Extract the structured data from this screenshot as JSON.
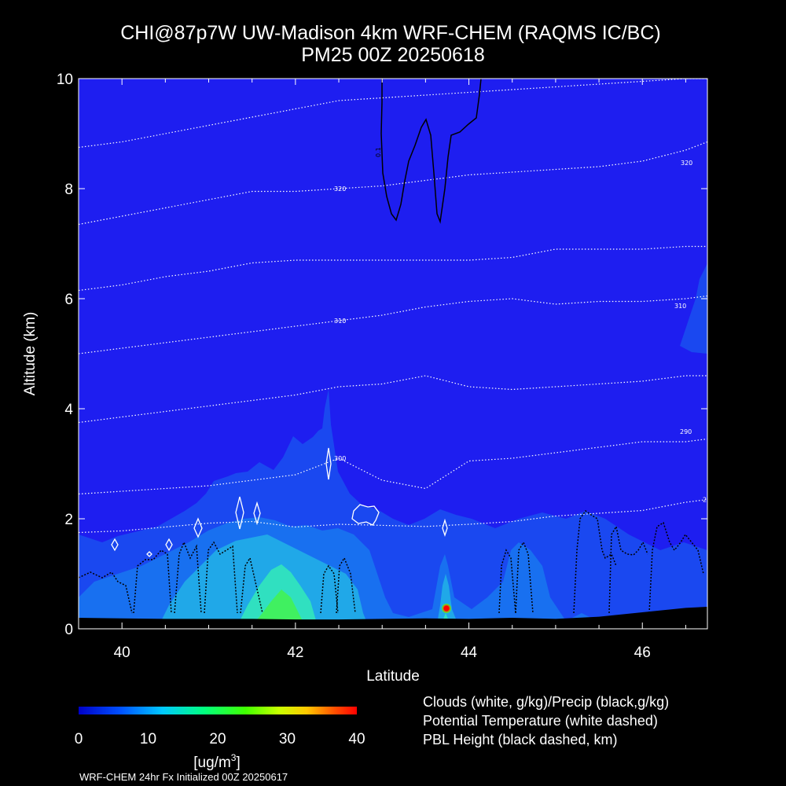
{
  "title": {
    "line1": "CHI@87p7W UW-Madison 4km WRF-CHEM (RAQMS IC/BC)",
    "line2": "PM25 00Z 20250618"
  },
  "chart_data": {
    "type": "heatmap",
    "xlabel": "Latitude",
    "ylabel": "Altitude (km)",
    "xlim": [
      39.5,
      46.75
    ],
    "ylim": [
      0,
      10
    ],
    "xticks": [
      40,
      42,
      44,
      46
    ],
    "yticks": [
      0,
      2,
      4,
      6,
      8,
      10
    ],
    "colorbar": {
      "ticks": [
        0,
        10,
        20,
        30,
        40
      ],
      "unit_prefix": "[ug/m",
      "unit_sup": "3",
      "unit_suffix": "]",
      "range": [
        0,
        40
      ]
    },
    "theta_contours": [
      {
        "label": "290",
        "x": [
          39.5,
          40.0,
          40.5,
          41.0,
          41.5,
          42.0,
          42.5,
          43.0,
          43.5,
          44.0,
          44.5,
          45.0,
          45.5,
          46.0,
          46.5,
          46.75
        ],
        "y": [
          1.75,
          1.78,
          1.85,
          1.92,
          1.95,
          1.85,
          1.9,
          1.88,
          1.86,
          1.9,
          1.95,
          2.05,
          2.1,
          2.15,
          2.3,
          2.35
        ]
      },
      {
        "label": "300",
        "x": [
          39.5,
          40.0,
          40.5,
          41.0,
          41.5,
          42.0,
          42.5,
          43.0,
          43.5,
          44.0,
          44.5,
          45.0,
          45.5,
          46.0,
          46.5,
          46.75
        ],
        "y": [
          2.45,
          2.5,
          2.55,
          2.6,
          2.7,
          2.8,
          3.1,
          2.7,
          2.55,
          3.05,
          3.1,
          3.2,
          3.3,
          3.4,
          3.4,
          3.45
        ]
      },
      {
        "label": "",
        "x": [
          39.5,
          40.0,
          40.5,
          41.0,
          41.5,
          42.0,
          42.5,
          43.0,
          43.5,
          44.0,
          44.5,
          45.0,
          45.5,
          46.0,
          46.5,
          46.75
        ],
        "y": [
          3.75,
          3.85,
          3.95,
          4.05,
          4.15,
          4.25,
          4.4,
          4.45,
          4.6,
          4.4,
          4.35,
          4.4,
          4.45,
          4.5,
          4.6,
          4.6
        ]
      },
      {
        "label": "310",
        "x": [
          39.5,
          40.0,
          40.5,
          41.0,
          41.5,
          42.0,
          42.5,
          43.0,
          43.5,
          44.0,
          44.5,
          45.0,
          45.5,
          46.0,
          46.5,
          46.75
        ],
        "y": [
          5.0,
          5.1,
          5.2,
          5.3,
          5.4,
          5.5,
          5.6,
          5.7,
          5.85,
          5.95,
          6.0,
          5.9,
          5.95,
          5.95,
          6.0,
          6.05
        ]
      },
      {
        "label": "",
        "x": [
          39.5,
          40.0,
          40.5,
          41.0,
          41.5,
          42.0,
          42.5,
          43.0,
          43.5,
          44.0,
          44.5,
          45.0,
          45.5,
          46.0,
          46.5,
          46.75
        ],
        "y": [
          6.15,
          6.25,
          6.4,
          6.5,
          6.65,
          6.7,
          6.7,
          6.7,
          6.7,
          6.7,
          6.75,
          6.9,
          6.9,
          6.9,
          6.95,
          6.95
        ]
      },
      {
        "label": "320",
        "x": [
          39.5,
          40.0,
          40.5,
          41.0,
          41.5,
          42.0,
          42.5,
          43.0,
          43.5,
          44.0,
          44.5,
          45.0,
          45.5,
          46.0,
          46.5,
          46.75
        ],
        "y": [
          7.35,
          7.5,
          7.65,
          7.8,
          7.95,
          7.95,
          8.0,
          8.05,
          8.15,
          8.25,
          8.3,
          8.35,
          8.4,
          8.5,
          8.7,
          8.85
        ]
      },
      {
        "label": "",
        "x": [
          39.5,
          40.0,
          40.5,
          41.0,
          41.5,
          42.0,
          42.5,
          43.0,
          43.5,
          44.0,
          44.5,
          45.0,
          45.5,
          46.0,
          46.5,
          46.75
        ],
        "y": [
          8.75,
          8.85,
          9.0,
          9.15,
          9.3,
          9.45,
          9.6,
          9.65,
          9.7,
          9.75,
          9.8,
          9.85,
          9.9,
          9.95,
          10.0,
          10.0
        ]
      }
    ],
    "precip_contour_label": "0.1",
    "terrain": {
      "x": [
        39.5,
        40.0,
        40.5,
        41.0,
        41.5,
        42.0,
        42.5,
        43.0,
        43.5,
        44.0,
        44.5,
        45.0,
        45.5,
        46.0,
        46.5,
        46.75
      ],
      "y": [
        0.2,
        0.19,
        0.18,
        0.18,
        0.18,
        0.17,
        0.17,
        0.18,
        0.19,
        0.18,
        0.2,
        0.18,
        0.22,
        0.3,
        0.38,
        0.4
      ]
    }
  },
  "legend": {
    "line1": "Clouds (white, g/kg)/Precip (black,g/kg)",
    "line2": "Potential Temperature (white dashed)",
    "line3": "PBL Height (black dashed, km)"
  },
  "footer": "WRF-CHEM 24hr  Fx Initialized 00Z 20250617",
  "colors": {
    "background": "#000000",
    "field_base": "#1e1ef0",
    "field_level1": "#1a48f0",
    "field_level2": "#1870f0",
    "field_level3": "#20a8e8",
    "field_level4": "#30e0c0",
    "field_level5": "#40f060",
    "peak": "#ff0000"
  }
}
